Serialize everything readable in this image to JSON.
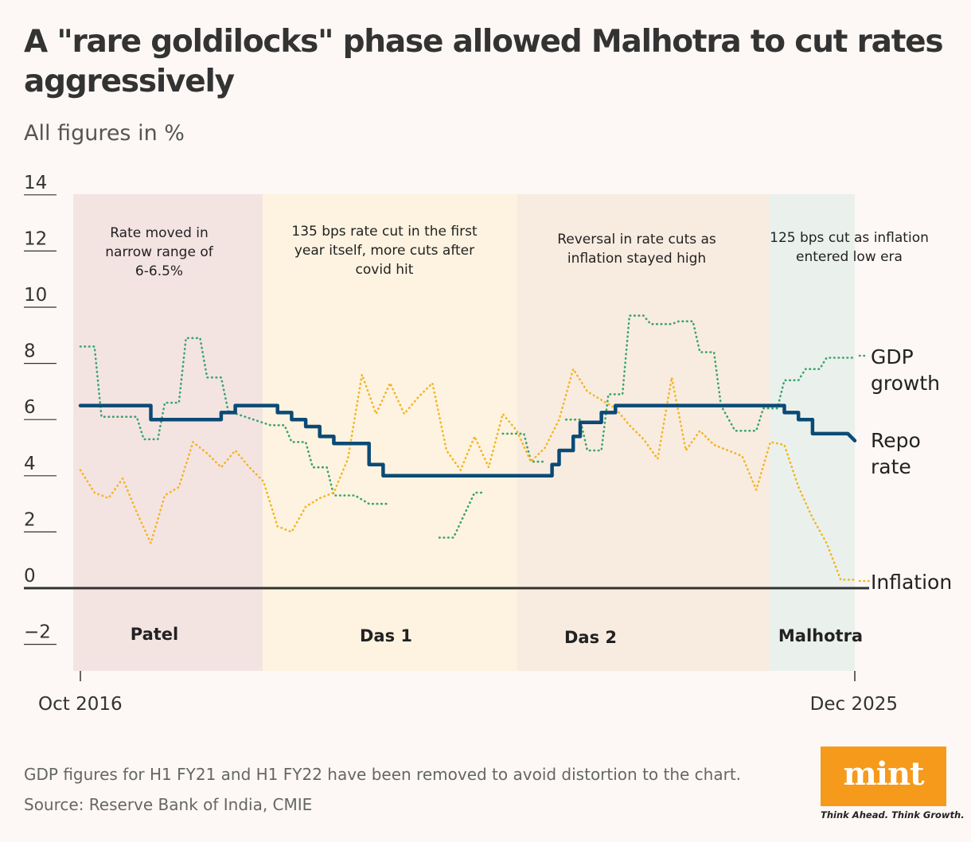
{
  "title": "A \"rare goldilocks\" phase allowed Malhotra to cut rates aggressively",
  "subtitle": "All figures in %",
  "footnote": "GDP figures for H1 FY21 and H1 FY22 have been removed to avoid distortion to the chart.",
  "source": "Source: Reserve Bank of India, CMIE",
  "logo": {
    "text": "mint",
    "tagline": "Think Ahead. Think Growth."
  },
  "colors": {
    "background": "#fdf8f5",
    "repo": "#0b4a75",
    "gdp": "#3aa56a",
    "inflation": "#f5b423",
    "logo": "#f59a1b"
  },
  "chart_data": {
    "type": "line",
    "x_range": [
      "2016-10",
      "2025-12"
    ],
    "x_tick_labels": [
      "Oct 2016",
      "Dec 2025"
    ],
    "y_range": [
      -3,
      14
    ],
    "y_ticks": [
      14,
      12,
      10,
      8,
      6,
      4,
      2,
      0,
      -2
    ],
    "y_tick_labels": [
      "14",
      "12",
      "10",
      "8",
      "6",
      "4",
      "2",
      "0",
      "−2"
    ],
    "periods": [
      {
        "name": "Patel",
        "start": "2016-10",
        "end": "2018-12",
        "color": "#f3e4e2",
        "annotation": [
          "Rate moved in",
          "narrow range of",
          "6-6.5%"
        ]
      },
      {
        "name": "Das 1",
        "start": "2018-12",
        "end": "2021-12",
        "color": "#fdf3e0",
        "annotation": [
          "135 bps rate cut in the first",
          "year itself, more cuts after",
          "covid hit"
        ]
      },
      {
        "name": "Das 2",
        "start": "2021-12",
        "end": "2024-12",
        "color": "#f8ece0",
        "annotation": [
          "Reversal in rate cuts as",
          "inflation stayed high"
        ]
      },
      {
        "name": "Malhotra",
        "start": "2024-12",
        "end": "2025-12",
        "color": "#eaf1ec",
        "annotation": [
          "125 bps cut as inflation",
          "entered low era"
        ]
      }
    ],
    "series": [
      {
        "name": "Repo rate",
        "label_lines": [
          "Repo",
          "rate"
        ],
        "style": "solid",
        "points": [
          [
            "2016-10",
            6.5
          ],
          [
            "2017-08",
            6.5
          ],
          [
            "2017-08",
            6.0
          ],
          [
            "2018-06",
            6.0
          ],
          [
            "2018-06",
            6.25
          ],
          [
            "2018-08",
            6.25
          ],
          [
            "2018-08",
            6.5
          ],
          [
            "2019-02",
            6.5
          ],
          [
            "2019-02",
            6.25
          ],
          [
            "2019-04",
            6.25
          ],
          [
            "2019-04",
            6.0
          ],
          [
            "2019-06",
            6.0
          ],
          [
            "2019-06",
            5.75
          ],
          [
            "2019-08",
            5.75
          ],
          [
            "2019-08",
            5.4
          ],
          [
            "2019-10",
            5.4
          ],
          [
            "2019-10",
            5.15
          ],
          [
            "2020-03",
            5.15
          ],
          [
            "2020-03",
            4.4
          ],
          [
            "2020-05",
            4.4
          ],
          [
            "2020-05",
            4.0
          ],
          [
            "2022-05",
            4.0
          ],
          [
            "2022-05",
            4.4
          ],
          [
            "2022-06",
            4.4
          ],
          [
            "2022-06",
            4.9
          ],
          [
            "2022-08",
            4.9
          ],
          [
            "2022-08",
            5.4
          ],
          [
            "2022-09",
            5.4
          ],
          [
            "2022-09",
            5.9
          ],
          [
            "2022-12",
            5.9
          ],
          [
            "2022-12",
            6.25
          ],
          [
            "2023-02",
            6.25
          ],
          [
            "2023-02",
            6.5
          ],
          [
            "2025-02",
            6.5
          ],
          [
            "2025-02",
            6.25
          ],
          [
            "2025-04",
            6.25
          ],
          [
            "2025-04",
            6.0
          ],
          [
            "2025-06",
            6.0
          ],
          [
            "2025-06",
            5.5
          ],
          [
            "2025-11",
            5.5
          ],
          [
            "2025-12",
            5.25
          ]
        ]
      },
      {
        "name": "GDP growth",
        "label_lines": [
          "GDP",
          "growth"
        ],
        "style": "dotted",
        "segments": [
          [
            [
              "2016-10",
              8.6
            ],
            [
              "2016-12",
              8.6
            ],
            [
              "2017-01",
              6.1
            ],
            [
              "2017-06",
              6.1
            ],
            [
              "2017-07",
              5.3
            ],
            [
              "2017-09",
              5.3
            ],
            [
              "2017-10",
              6.6
            ],
            [
              "2017-12",
              6.6
            ],
            [
              "2018-01",
              8.9
            ],
            [
              "2018-03",
              8.9
            ],
            [
              "2018-04",
              7.5
            ],
            [
              "2018-06",
              7.5
            ],
            [
              "2018-07",
              6.3
            ],
            [
              "2019-01",
              5.8
            ],
            [
              "2019-03",
              5.8
            ],
            [
              "2019-04",
              5.2
            ],
            [
              "2019-06",
              5.2
            ],
            [
              "2019-07",
              4.3
            ],
            [
              "2019-09",
              4.3
            ],
            [
              "2019-10",
              3.3
            ],
            [
              "2020-01",
              3.3
            ],
            [
              "2020-03",
              3.0
            ],
            [
              "2020-06",
              3.0
            ]
          ],
          [
            [
              "2021-01",
              1.8
            ],
            [
              "2021-03",
              1.8
            ],
            [
              "2021-06",
              3.4
            ],
            [
              "2021-07",
              3.4
            ]
          ],
          [
            [
              "2021-10",
              5.5
            ],
            [
              "2022-01",
              5.5
            ],
            [
              "2022-02",
              4.5
            ],
            [
              "2022-04",
              4.5
            ]
          ],
          [
            [
              "2022-07",
              6.0
            ],
            [
              "2022-09",
              6.0
            ],
            [
              "2022-10",
              4.9
            ],
            [
              "2022-12",
              4.9
            ],
            [
              "2023-01",
              6.9
            ],
            [
              "2023-03",
              6.9
            ],
            [
              "2023-04",
              9.7
            ],
            [
              "2023-06",
              9.7
            ],
            [
              "2023-07",
              9.4
            ],
            [
              "2023-10",
              9.4
            ],
            [
              "2023-11",
              9.5
            ],
            [
              "2024-01",
              9.5
            ],
            [
              "2024-02",
              8.4
            ],
            [
              "2024-04",
              8.4
            ],
            [
              "2024-05",
              6.5
            ],
            [
              "2024-07",
              5.6
            ],
            [
              "2024-10",
              5.6
            ],
            [
              "2024-11",
              6.4
            ],
            [
              "2025-01",
              6.4
            ],
            [
              "2025-02",
              7.4
            ],
            [
              "2025-04",
              7.4
            ],
            [
              "2025-05",
              7.8
            ],
            [
              "2025-07",
              7.8
            ],
            [
              "2025-08",
              8.2
            ],
            [
              "2025-12",
              8.2
            ]
          ]
        ]
      },
      {
        "name": "Inflation",
        "label_lines": [
          "Inflation"
        ],
        "style": "dotted",
        "segments": [
          [
            [
              "2016-10",
              4.2
            ],
            [
              "2016-12",
              3.4
            ],
            [
              "2017-02",
              3.2
            ],
            [
              "2017-04",
              3.9
            ],
            [
              "2017-06",
              2.7
            ],
            [
              "2017-08",
              1.6
            ],
            [
              "2017-10",
              3.3
            ],
            [
              "2017-12",
              3.6
            ],
            [
              "2018-02",
              5.2
            ],
            [
              "2018-04",
              4.8
            ],
            [
              "2018-06",
              4.3
            ],
            [
              "2018-08",
              4.9
            ],
            [
              "2018-10",
              4.3
            ],
            [
              "2018-12",
              3.8
            ],
            [
              "2019-02",
              2.2
            ],
            [
              "2019-04",
              2.0
            ],
            [
              "2019-06",
              2.9
            ],
            [
              "2019-08",
              3.2
            ],
            [
              "2019-10",
              3.4
            ],
            [
              "2019-12",
              4.6
            ],
            [
              "2020-02",
              7.6
            ],
            [
              "2020-04",
              6.2
            ],
            [
              "2020-06",
              7.3
            ],
            [
              "2020-08",
              6.2
            ],
            [
              "2020-10",
              6.8
            ],
            [
              "2020-12",
              7.3
            ],
            [
              "2021-02",
              4.9
            ],
            [
              "2021-04",
              4.2
            ],
            [
              "2021-06",
              5.4
            ],
            [
              "2021-08",
              4.3
            ],
            [
              "2021-10",
              6.2
            ],
            [
              "2021-12",
              5.6
            ],
            [
              "2022-02",
              4.5
            ],
            [
              "2022-04",
              5.0
            ],
            [
              "2022-06",
              6.0
            ],
            [
              "2022-08",
              7.8
            ],
            [
              "2022-10",
              7.0
            ],
            [
              "2022-12",
              6.7
            ],
            [
              "2023-02",
              6.4
            ],
            [
              "2023-04",
              5.8
            ],
            [
              "2023-06",
              5.3
            ],
            [
              "2023-08",
              4.6
            ],
            [
              "2023-10",
              7.5
            ],
            [
              "2023-12",
              4.9
            ],
            [
              "2024-02",
              5.6
            ],
            [
              "2024-04",
              5.1
            ],
            [
              "2024-06",
              4.9
            ],
            [
              "2024-08",
              4.7
            ],
            [
              "2024-10",
              3.5
            ],
            [
              "2024-12",
              5.2
            ],
            [
              "2025-02",
              5.1
            ],
            [
              "2025-04",
              3.6
            ],
            [
              "2025-06",
              2.5
            ],
            [
              "2025-08",
              1.6
            ],
            [
              "2025-10",
              0.3
            ],
            [
              "2025-12",
              0.3
            ]
          ]
        ]
      }
    ]
  }
}
